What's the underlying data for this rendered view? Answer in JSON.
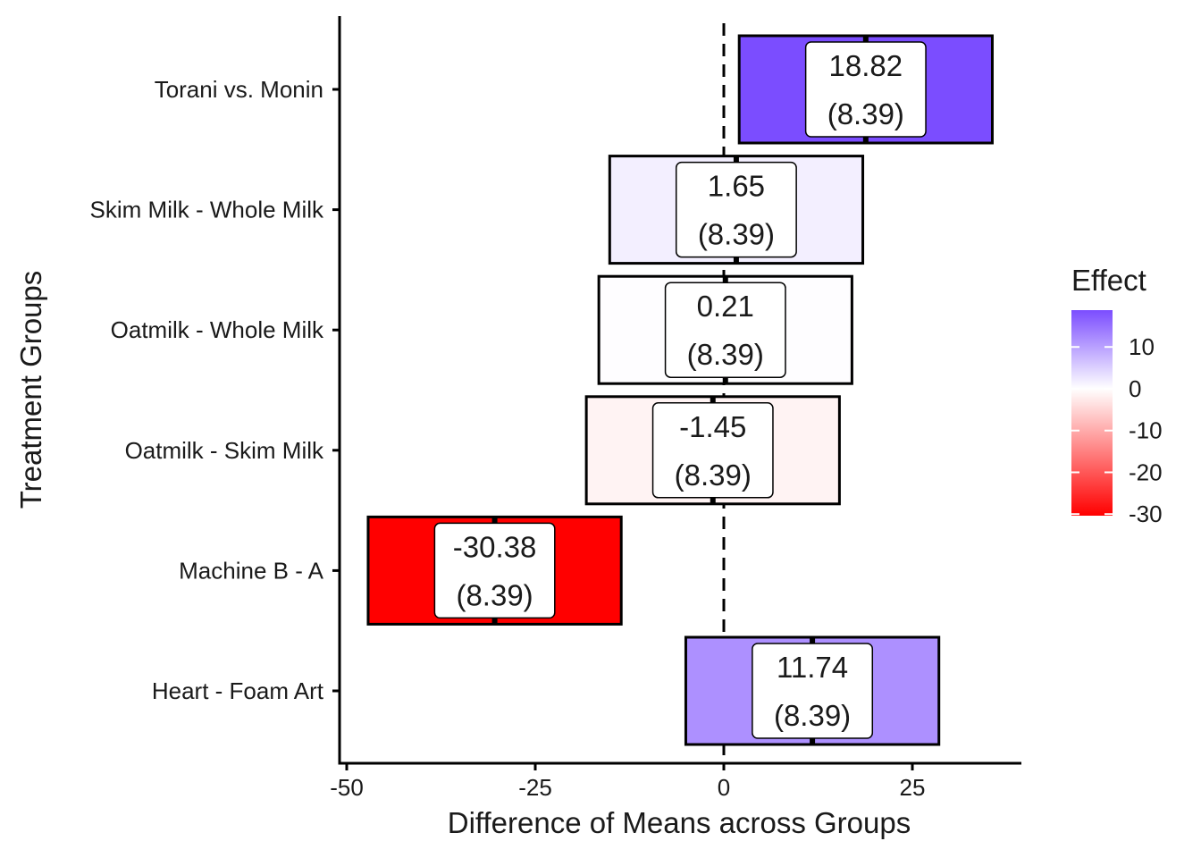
{
  "chart_data": {
    "type": "crossbar",
    "xlabel": "Difference of Means across Groups",
    "ylabel": "Treatment Groups",
    "xlim": [
      -50,
      40
    ],
    "x_ticks": [
      -50,
      -25,
      0,
      25
    ],
    "x_tick_labels": [
      "-50",
      "-25",
      "0",
      "25"
    ],
    "reference_line": 0,
    "categories": [
      "Torani vs. Monin",
      "Skim Milk - Whole Milk",
      "Oatmilk - Whole Milk",
      "Oatmilk - Skim Milk",
      "Machine B - A",
      "Heart - Foam Art"
    ],
    "estimates": [
      18.82,
      1.65,
      0.21,
      -1.45,
      -30.38,
      11.74
    ],
    "std_errors": [
      8.39,
      8.39,
      8.39,
      8.39,
      8.39,
      8.39
    ],
    "estimate_labels": [
      "18.82",
      "1.65",
      "0.21",
      "-1.45",
      "-30.38",
      "11.74"
    ],
    "se_labels": [
      "(8.39)",
      "(8.39)",
      "(8.39)",
      "(8.39)",
      "(8.39)",
      "(8.39)"
    ],
    "legend": {
      "title": "Effect",
      "position": "right",
      "breaks": [
        10,
        0,
        -10,
        -20,
        -30
      ],
      "labels": [
        "10",
        "0",
        "-10",
        "-20",
        "-30"
      ],
      "range": [
        -30.38,
        18.82
      ],
      "low_color": "#ff0000",
      "mid_color": "#ffffff",
      "high_color": "#7b4dff"
    },
    "grid": false
  }
}
